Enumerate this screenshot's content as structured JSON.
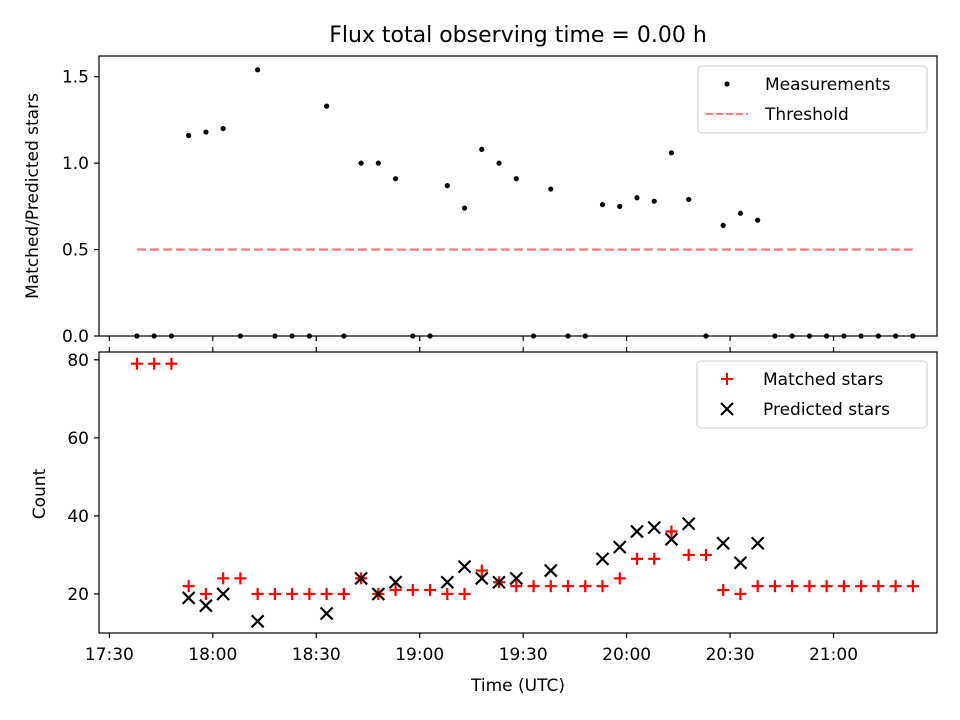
{
  "chart_data": [
    {
      "type": "scatter",
      "title": "Flux total observing time = 0.00 h",
      "xlabel": "",
      "ylabel": "Matched/Predicted stars",
      "xlim": [
        "17:27",
        "21:30"
      ],
      "ylim": [
        0,
        1.62
      ],
      "yticks": [
        0.0,
        0.5,
        1.0,
        1.5
      ],
      "ytick_labels": [
        "0.0",
        "0.5",
        "1.0",
        "1.5"
      ],
      "legend": {
        "position": "top-right",
        "entries": [
          "Measurements",
          "Threshold"
        ]
      },
      "grid": false,
      "series": [
        {
          "name": "Measurements",
          "marker": "dot",
          "color": "#000000",
          "points": [
            [
              "17:38",
              0
            ],
            [
              "17:43",
              0
            ],
            [
              "17:48",
              0
            ],
            [
              "17:53",
              1.16
            ],
            [
              "17:58",
              1.18
            ],
            [
              "18:03",
              1.2
            ],
            [
              "18:08",
              0
            ],
            [
              "18:13",
              1.54
            ],
            [
              "18:18",
              0
            ],
            [
              "18:23",
              0
            ],
            [
              "18:28",
              0
            ],
            [
              "18:33",
              1.33
            ],
            [
              "18:38",
              0
            ],
            [
              "18:43",
              1.0
            ],
            [
              "18:48",
              1.0
            ],
            [
              "18:53",
              0.91
            ],
            [
              "18:58",
              0
            ],
            [
              "19:03",
              0
            ],
            [
              "19:08",
              0.87
            ],
            [
              "19:13",
              0.74
            ],
            [
              "19:18",
              1.08
            ],
            [
              "19:23",
              1.0
            ],
            [
              "19:28",
              0.91
            ],
            [
              "19:33",
              0
            ],
            [
              "19:38",
              0.85
            ],
            [
              "19:43",
              0
            ],
            [
              "19:48",
              0
            ],
            [
              "19:53",
              0.76
            ],
            [
              "19:58",
              0.75
            ],
            [
              "20:03",
              0.8
            ],
            [
              "20:08",
              0.78
            ],
            [
              "20:13",
              1.06
            ],
            [
              "20:18",
              0.79
            ],
            [
              "20:23",
              0
            ],
            [
              "20:28",
              0.64
            ],
            [
              "20:33",
              0.71
            ],
            [
              "20:38",
              0.67
            ],
            [
              "20:43",
              0
            ],
            [
              "20:48",
              0
            ],
            [
              "20:53",
              0
            ],
            [
              "20:58",
              0
            ],
            [
              "21:03",
              0
            ],
            [
              "21:08",
              0
            ],
            [
              "21:13",
              0
            ],
            [
              "21:18",
              0
            ],
            [
              "21:23",
              0
            ]
          ]
        },
        {
          "name": "Threshold",
          "style": "dashed",
          "color": "#ff8080",
          "points": [
            [
              "17:38",
              0.5
            ],
            [
              "21:23",
              0.5
            ]
          ]
        }
      ]
    },
    {
      "type": "scatter",
      "title": "",
      "xlabel": "Time (UTC)",
      "ylabel": "Count",
      "xlim": [
        "17:27",
        "21:30"
      ],
      "ylim": [
        10,
        82
      ],
      "yticks": [
        20,
        40,
        60,
        80
      ],
      "xticks": [
        "17:30",
        "18:00",
        "18:30",
        "19:00",
        "19:30",
        "20:00",
        "20:30",
        "21:00"
      ],
      "legend": {
        "position": "top-right",
        "entries": [
          "Matched stars",
          "Predicted stars"
        ]
      },
      "grid": false,
      "series": [
        {
          "name": "Matched stars",
          "marker": "plus",
          "color": "#ff0000",
          "points": [
            [
              "17:38",
              79
            ],
            [
              "17:43",
              79
            ],
            [
              "17:48",
              79
            ],
            [
              "17:53",
              22
            ],
            [
              "17:58",
              20
            ],
            [
              "18:03",
              24
            ],
            [
              "18:08",
              24
            ],
            [
              "18:13",
              20
            ],
            [
              "18:18",
              20
            ],
            [
              "18:23",
              20
            ],
            [
              "18:28",
              20
            ],
            [
              "18:33",
              20
            ],
            [
              "18:38",
              20
            ],
            [
              "18:43",
              24
            ],
            [
              "18:48",
              20
            ],
            [
              "18:53",
              21
            ],
            [
              "18:58",
              21
            ],
            [
              "19:03",
              21
            ],
            [
              "19:08",
              20
            ],
            [
              "19:13",
              20
            ],
            [
              "19:18",
              26
            ],
            [
              "19:23",
              23
            ],
            [
              "19:28",
              22
            ],
            [
              "19:33",
              22
            ],
            [
              "19:38",
              22
            ],
            [
              "19:43",
              22
            ],
            [
              "19:48",
              22
            ],
            [
              "19:53",
              22
            ],
            [
              "19:58",
              24
            ],
            [
              "20:03",
              29
            ],
            [
              "20:08",
              29
            ],
            [
              "20:13",
              36
            ],
            [
              "20:18",
              30
            ],
            [
              "20:23",
              30
            ],
            [
              "20:28",
              21
            ],
            [
              "20:33",
              20
            ],
            [
              "20:38",
              22
            ],
            [
              "20:43",
              22
            ],
            [
              "20:48",
              22
            ],
            [
              "20:53",
              22
            ],
            [
              "20:58",
              22
            ],
            [
              "21:03",
              22
            ],
            [
              "21:08",
              22
            ],
            [
              "21:13",
              22
            ],
            [
              "21:18",
              22
            ],
            [
              "21:23",
              22
            ]
          ]
        },
        {
          "name": "Predicted stars",
          "marker": "x",
          "color": "#000000",
          "points": [
            [
              "17:53",
              19
            ],
            [
              "17:58",
              17
            ],
            [
              "18:03",
              20
            ],
            [
              "18:13",
              13
            ],
            [
              "18:33",
              15
            ],
            [
              "18:43",
              24
            ],
            [
              "18:48",
              20
            ],
            [
              "18:53",
              23
            ],
            [
              "19:08",
              23
            ],
            [
              "19:13",
              27
            ],
            [
              "19:18",
              24
            ],
            [
              "19:23",
              23
            ],
            [
              "19:28",
              24
            ],
            [
              "19:38",
              26
            ],
            [
              "19:53",
              29
            ],
            [
              "19:58",
              32
            ],
            [
              "20:03",
              36
            ],
            [
              "20:08",
              37
            ],
            [
              "20:13",
              34
            ],
            [
              "20:18",
              38
            ],
            [
              "20:28",
              33
            ],
            [
              "20:33",
              28
            ],
            [
              "20:38",
              33
            ]
          ]
        }
      ]
    }
  ]
}
